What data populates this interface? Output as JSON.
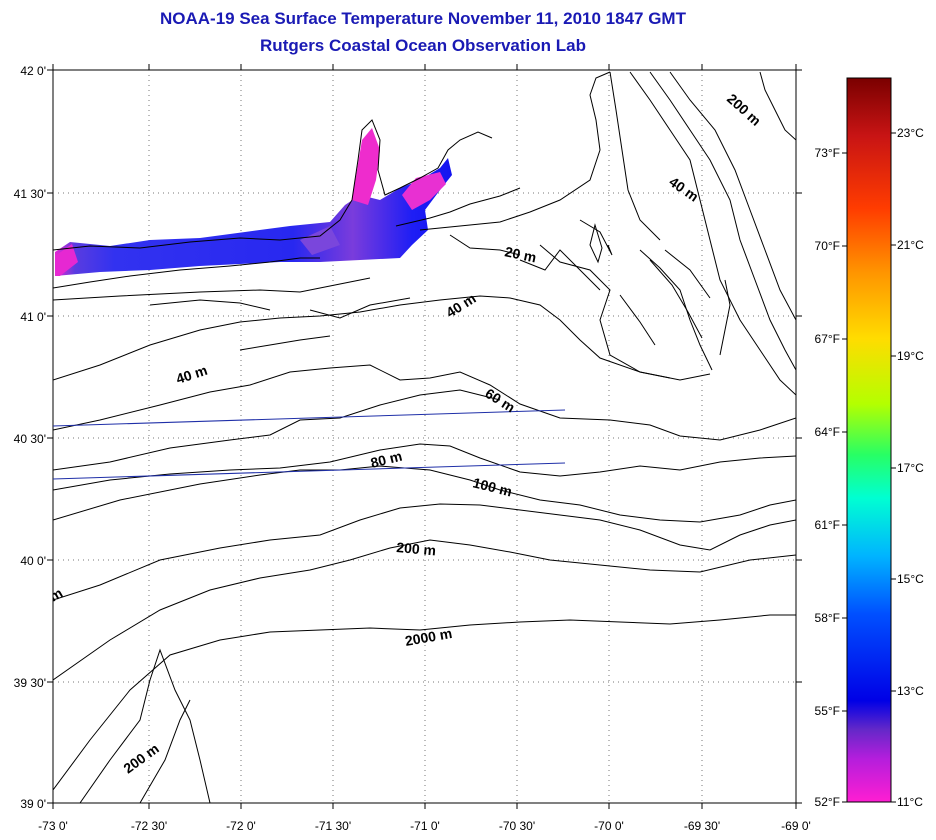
{
  "title": {
    "line1": "NOAA-19 Sea Surface Temperature November 11, 2010 1847 GMT",
    "line2": "Rutgers Coastal Ocean Observation Lab"
  },
  "map": {
    "lat_labels": [
      "42 0'",
      "41 30'",
      "41 0'",
      "40 30'",
      "40 0'",
      "39 30'",
      "39 0'"
    ],
    "lon_labels": [
      "-73 0'",
      "-72 30'",
      "-72 0'",
      "-71 30'",
      "-71 0'",
      "-70 30'",
      "-70 0'",
      "-69 30'",
      "-69 0'"
    ],
    "contour_labels": [
      "200 m",
      "40 m",
      "20 m",
      "40 m",
      "40 m",
      "60 m",
      "80 m",
      "100 m",
      "200 m",
      "2000 m",
      "200 m",
      "m"
    ],
    "colors": {
      "title": "#1a1ab4",
      "transect": "#1f2fa8",
      "contour": "#000000"
    }
  },
  "colorbar": {
    "celsius_labels": [
      "23°C",
      "21°C",
      "19°C",
      "17°C",
      "15°C",
      "13°C",
      "11°C"
    ],
    "fahrenheit_labels": [
      "73°F",
      "70°F",
      "67°F",
      "64°F",
      "61°F",
      "58°F",
      "55°F",
      "52°F"
    ],
    "gradient": [
      "#7a0000",
      "#c81414",
      "#ff3c00",
      "#ff9600",
      "#ffdc00",
      "#b4ff00",
      "#28ff64",
      "#00ffd2",
      "#00b4ff",
      "#0050ff",
      "#0000e6",
      "#6428c8",
      "#b41edc",
      "#ff1ed2"
    ]
  }
}
